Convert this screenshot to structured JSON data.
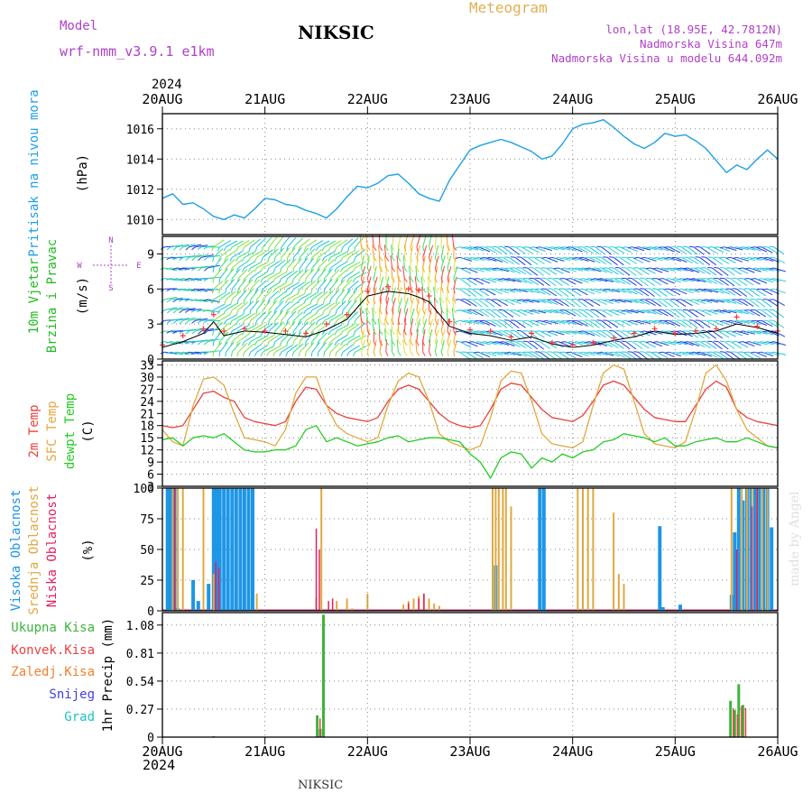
{
  "header": {
    "model_label": "Model",
    "model_name": "wrf-nmm_v3.9.1  e1km",
    "station": "NIKSIC",
    "product": "Meteogram",
    "coords": "lon,lat (18.95E, 42.7812N)",
    "elevation": "Nadmorska Visina 647m",
    "model_elevation": "Nadmorska Visina u modelu 644.092m",
    "year_top": "2024",
    "year_bottom": "2024",
    "footer_station": "NIKSIC",
    "credit": "made by Angel"
  },
  "time_axis": {
    "labels": [
      "20AUG",
      "21AUG",
      "22AUG",
      "23AUG",
      "24AUG",
      "25AUG",
      "26AUG"
    ],
    "range_days": [
      0,
      6
    ]
  },
  "colors": {
    "pressure": "#1ea0e6",
    "wind_label": "#22bb22",
    "wind_speed_line": "#000000",
    "gust": "#ff3333",
    "temp2m": "#e8403a",
    "sfc_temp": "#e0a840",
    "dewpoint": "#22cc22",
    "cloud_high": "#1e96e6",
    "cloud_mid": "#e0a840",
    "cloud_low": "#e02060",
    "precip_total": "#3cb43c",
    "precip_conv": "#e84040",
    "precip_frozen": "#f08030",
    "precip_snow": "#4040e0",
    "precip_grad": "#20c0c0",
    "header_purple": "#b040c8",
    "header_orange": "#e0b050"
  },
  "chart_data": [
    {
      "type": "line",
      "panel": "pressure",
      "ylabel_left": "Pritisak na nivou mora",
      "ylabel_unit": "(hPa)",
      "ylim": [
        1009,
        1017
      ],
      "yticks": [
        1010,
        1012,
        1014,
        1016
      ],
      "x_days": [
        0,
        0.1,
        0.2,
        0.3,
        0.4,
        0.5,
        0.6,
        0.7,
        0.8,
        0.9,
        1.0,
        1.1,
        1.2,
        1.3,
        1.4,
        1.5,
        1.6,
        1.7,
        1.8,
        1.9,
        2.0,
        2.1,
        2.2,
        2.3,
        2.4,
        2.5,
        2.6,
        2.7,
        2.8,
        2.9,
        3.0,
        3.1,
        3.2,
        3.3,
        3.4,
        3.5,
        3.6,
        3.7,
        3.8,
        3.9,
        4.0,
        4.1,
        4.2,
        4.3,
        4.4,
        4.5,
        4.6,
        4.7,
        4.8,
        4.9,
        5.0,
        5.1,
        5.2,
        5.3,
        5.4,
        5.5,
        5.6,
        5.7,
        5.8,
        5.9,
        6.0
      ],
      "series": [
        {
          "name": "",
          "values": [
            1011.4,
            1011.7,
            1011.0,
            1011.1,
            1010.7,
            1010.2,
            1010.0,
            1010.3,
            1010.1,
            1010.7,
            1011.4,
            1011.3,
            1011.0,
            1010.9,
            1010.6,
            1010.4,
            1010.1,
            1010.7,
            1011.5,
            1012.2,
            1012.1,
            1012.4,
            1012.9,
            1013.0,
            1012.4,
            1011.7,
            1011.4,
            1011.2,
            1012.6,
            1013.6,
            1014.6,
            1014.9,
            1015.1,
            1015.3,
            1015.1,
            1014.8,
            1014.5,
            1014.0,
            1014.2,
            1015.0,
            1016.0,
            1016.3,
            1016.4,
            1016.6,
            1016.1,
            1015.5,
            1015.0,
            1014.7,
            1015.1,
            1015.7,
            1015.5,
            1015.6,
            1015.2,
            1014.7,
            1013.9,
            1013.1,
            1013.6,
            1013.3,
            1014.0,
            1014.6,
            1014.0
          ]
        }
      ]
    },
    {
      "type": "line",
      "panel": "wind",
      "ylabel_left_1": "10m Vjetar",
      "ylabel_left_2": "Brzina i Pravac",
      "ylabel_unit": "(m/s)",
      "compass": {
        "n": "N",
        "e": "E",
        "w": "W",
        "s": "S"
      },
      "ylim": [
        0,
        10.5
      ],
      "yticks": [
        0,
        3,
        6,
        9
      ],
      "x_days": [
        0,
        0.2,
        0.4,
        0.5,
        0.6,
        0.8,
        1.0,
        1.2,
        1.4,
        1.6,
        1.8,
        2.0,
        2.2,
        2.4,
        2.5,
        2.6,
        2.8,
        3.0,
        3.2,
        3.4,
        3.6,
        3.8,
        4.0,
        4.2,
        4.4,
        4.6,
        4.8,
        5.0,
        5.2,
        5.4,
        5.6,
        5.8,
        6.0
      ],
      "series": [
        {
          "name": "speed",
          "values": [
            1.0,
            1.5,
            2.2,
            3.2,
            2.0,
            2.4,
            2.3,
            2.1,
            1.9,
            2.5,
            3.4,
            5.4,
            5.8,
            5.6,
            5.3,
            4.9,
            2.8,
            2.2,
            2.0,
            1.6,
            1.9,
            1.3,
            1.0,
            1.2,
            1.6,
            1.9,
            2.4,
            2.1,
            2.2,
            2.4,
            3.0,
            2.7,
            2.2
          ]
        },
        {
          "name": "gust",
          "values": [
            1.2,
            2.0,
            2.6,
            3.8,
            2.4,
            2.6,
            2.4,
            2.4,
            2.2,
            3.0,
            3.8,
            5.8,
            6.2,
            6.0,
            5.9,
            5.4,
            3.2,
            2.5,
            2.4,
            1.9,
            2.2,
            1.4,
            1.2,
            1.4,
            1.8,
            2.2,
            2.6,
            2.2,
            2.4,
            2.6,
            3.6,
            2.8,
            2.4
          ]
        }
      ],
      "wind_direction_bands": [
        {
          "from_day": 0.0,
          "to_day": 0.45,
          "dominant": "W"
        },
        {
          "from_day": 0.45,
          "to_day": 1.9,
          "dominant": "SW"
        },
        {
          "from_day": 1.9,
          "to_day": 2.9,
          "dominant": "S"
        },
        {
          "from_day": 2.9,
          "to_day": 6.0,
          "dominant": "NW"
        }
      ]
    },
    {
      "type": "line",
      "panel": "temperature",
      "ylabel_left_1": "2m Temp",
      "ylabel_left_2": "SFC Temp",
      "ylabel_left_3": "dewpt Temp",
      "ylabel_unit": "(C)",
      "ylim": [
        3,
        34
      ],
      "yticks": [
        3,
        6,
        9,
        12,
        15,
        18,
        21,
        24,
        27,
        30,
        33
      ],
      "x_days": [
        0,
        0.1,
        0.2,
        0.3,
        0.4,
        0.5,
        0.6,
        0.7,
        0.8,
        0.9,
        1.0,
        1.1,
        1.2,
        1.3,
        1.4,
        1.5,
        1.6,
        1.7,
        1.8,
        1.9,
        2.0,
        2.1,
        2.2,
        2.3,
        2.4,
        2.5,
        2.6,
        2.7,
        2.8,
        2.9,
        3.0,
        3.1,
        3.2,
        3.3,
        3.4,
        3.5,
        3.6,
        3.7,
        3.8,
        3.9,
        4.0,
        4.1,
        4.2,
        4.3,
        4.4,
        4.5,
        4.6,
        4.7,
        4.8,
        4.9,
        5.0,
        5.1,
        5.2,
        5.3,
        5.4,
        5.5,
        5.6,
        5.7,
        5.8,
        5.9,
        6.0
      ],
      "series": [
        {
          "name": "2m Temp",
          "values": [
            18,
            17.5,
            18,
            22,
            26,
            26.5,
            25,
            24,
            20,
            19,
            18.5,
            18,
            19,
            24,
            27.5,
            27,
            23,
            21,
            20,
            19.5,
            19,
            20,
            24,
            27,
            28,
            27,
            24,
            21,
            19,
            18,
            17.5,
            18,
            22,
            27,
            28.5,
            28,
            25,
            22,
            20,
            19.5,
            19,
            20.5,
            24,
            28,
            29,
            28,
            25,
            22,
            20,
            19.5,
            19,
            19,
            23,
            27,
            29,
            27.5,
            22,
            20,
            19,
            18.5,
            18
          ]
        },
        {
          "name": "SFC Temp",
          "values": [
            17,
            14,
            13,
            23,
            29.5,
            30,
            28,
            21,
            15,
            14.5,
            14,
            13,
            17,
            26,
            30,
            30,
            23,
            18,
            16,
            15,
            14,
            15,
            23,
            29,
            31,
            30,
            24,
            16,
            14,
            13,
            12,
            13,
            20,
            29,
            31.5,
            31,
            24,
            16,
            13.5,
            13,
            12.5,
            14,
            23,
            31,
            33,
            32,
            24,
            16,
            13.5,
            13,
            12.5,
            14,
            22,
            31,
            33,
            29,
            22,
            17,
            15,
            13,
            12.5
          ]
        },
        {
          "name": "dewpt Temp",
          "values": [
            14.5,
            15,
            13,
            15,
            15.5,
            15,
            16,
            14,
            12,
            11.5,
            11.5,
            12,
            12,
            13,
            17,
            18,
            14,
            15,
            14,
            13,
            13.5,
            14,
            15,
            15.5,
            14,
            14.5,
            15,
            15,
            14.5,
            14,
            11,
            9,
            5,
            10,
            11.5,
            11,
            7.5,
            10,
            9,
            11,
            10,
            11.5,
            12,
            14,
            14.5,
            16,
            15.5,
            15,
            14,
            15,
            13,
            13,
            14,
            14.5,
            15,
            14,
            14,
            15,
            14,
            13,
            12.5
          ]
        }
      ]
    },
    {
      "type": "bar",
      "panel": "clouds",
      "ylabel_left_1": "Visoka Oblacnost",
      "ylabel_left_2": "Srednja Oblacnost",
      "ylabel_left_3": "Niska Oblacnost",
      "ylabel_unit": "(%)",
      "ylim": [
        0,
        100
      ],
      "yticks": [
        0,
        25,
        50,
        75,
        100
      ],
      "series": [
        {
          "name": "Visoka Oblacnost",
          "x_days": [
            0.05,
            0.08,
            0.12,
            0.15,
            0.3,
            0.35,
            0.45,
            0.5,
            0.53,
            0.56,
            0.6,
            0.64,
            0.68,
            0.72,
            0.76,
            0.8,
            0.84,
            0.88,
            3.25,
            3.68,
            3.72,
            4.85,
            4.88,
            5.05,
            5.55,
            5.58,
            5.62,
            5.66,
            5.7,
            5.74,
            5.78,
            5.82,
            5.86,
            5.9,
            5.94
          ],
          "values": [
            100,
            100,
            100,
            2,
            25,
            8,
            22,
            100,
            100,
            100,
            100,
            100,
            100,
            100,
            100,
            100,
            100,
            100,
            37,
            100,
            100,
            69,
            3,
            5,
            13,
            64,
            100,
            90,
            100,
            100,
            100,
            100,
            100,
            100,
            68
          ]
        },
        {
          "name": "Srednja Oblacnost",
          "x_days": [
            0.1,
            0.15,
            0.2,
            0.4,
            0.5,
            0.92,
            1.5,
            1.55,
            1.7,
            1.8,
            1.85,
            2.0,
            2.35,
            2.4,
            2.45,
            2.5,
            2.55,
            2.6,
            2.65,
            2.7,
            3.22,
            3.25,
            3.28,
            3.32,
            3.35,
            3.4,
            4.05,
            4.1,
            4.15,
            4.2,
            4.4,
            4.45,
            4.5,
            5.55,
            5.65,
            5.7,
            5.75,
            5.8,
            5.85,
            5.9
          ],
          "values": [
            100,
            100,
            100,
            100,
            30,
            14,
            11,
            100,
            8,
            10,
            2,
            14,
            5,
            8,
            10,
            12,
            14,
            10,
            6,
            4,
            100,
            100,
            100,
            100,
            100,
            85,
            100,
            100,
            100,
            100,
            80,
            30,
            22,
            100,
            100,
            100,
            100,
            100,
            100,
            100
          ]
        },
        {
          "name": "Niska Oblacnost",
          "x_days": [
            0.12,
            0.52,
            0.55,
            1.5,
            1.53,
            1.62,
            1.66,
            2.4,
            2.5,
            2.55,
            5.6,
            5.75,
            5.8
          ],
          "values": [
            100,
            40,
            35,
            67,
            50,
            8,
            10,
            6,
            10,
            14,
            50,
            85,
            100
          ]
        }
      ]
    },
    {
      "type": "bar",
      "panel": "precipitation",
      "ylabel_unit": "1hr Precip (mm)",
      "legend": [
        "Ukupna Kisa",
        "Konvek.Kisa",
        "Zaledj.Kisa",
        "Snijeg",
        "Grad"
      ],
      "ylim": [
        0,
        1.2
      ],
      "yticks": [
        0,
        0.27,
        0.54,
        0.81,
        1.08
      ],
      "series": [
        {
          "name": "Ukupna Kisa",
          "x_days": [
            0.5,
            1.51,
            1.54,
            1.57,
            5.54,
            5.58,
            5.62,
            5.66
          ],
          "values": [
            0.01,
            0.21,
            0.08,
            1.18,
            0.35,
            0.26,
            0.51,
            0.31
          ]
        },
        {
          "name": "Konvek.Kisa",
          "x_days": [
            1.52,
            5.55,
            5.59,
            5.63,
            5.67
          ],
          "values": [
            0.18,
            0.28,
            0.22,
            0.3,
            0.28
          ]
        }
      ]
    }
  ]
}
